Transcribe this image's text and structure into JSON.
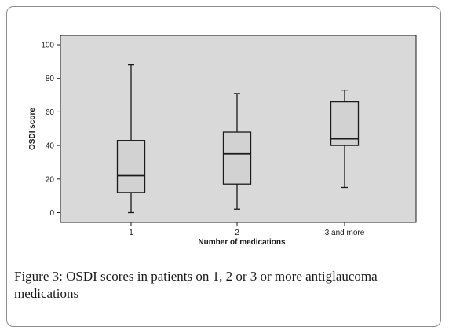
{
  "chart_data": {
    "type": "box",
    "categories": [
      "1",
      "2",
      "3 and more"
    ],
    "boxes": [
      {
        "category": "1",
        "min": 0,
        "q1": 12,
        "median": 22,
        "q3": 43,
        "max": 88
      },
      {
        "category": "2",
        "min": 2,
        "q1": 17,
        "median": 35,
        "q3": 48,
        "max": 71
      },
      {
        "category": "3 and more",
        "min": 15,
        "q1": 40,
        "median": 44,
        "q3": 66,
        "max": 73
      }
    ],
    "xlabel": "Number of medications",
    "ylabel": "OSDI score",
    "yticks": [
      0,
      20,
      40,
      60,
      80,
      100
    ],
    "ylim": [
      -6,
      106
    ],
    "grid": false
  },
  "caption": {
    "label": "Figure 3:",
    "text": " OSDI scores in patients on 1, 2 or 3 or more antiglaucoma medications"
  },
  "colors": {
    "plot_background": "#d9d9d9",
    "box_fill": "#d2d2d2",
    "stroke": "#1a1a1a"
  }
}
